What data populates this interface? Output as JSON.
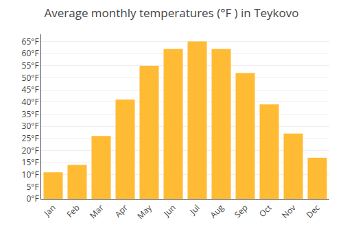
{
  "chart_data": {
    "type": "bar",
    "title": "Average monthly temperatures (°F ) in Teykovo",
    "categories": [
      "Jan",
      "Feb",
      "Mar",
      "Apr",
      "May",
      "Jun",
      "Jul",
      "Aug",
      "Sep",
      "Oct",
      "Nov",
      "Dec"
    ],
    "values": [
      11,
      14,
      26,
      41,
      55,
      62,
      65,
      62,
      52,
      39,
      27,
      17
    ],
    "color": "#FFBB33",
    "ylim": [
      0,
      68
    ],
    "yticks": [
      {
        "value": 0,
        "label": "0°F"
      },
      {
        "value": 5,
        "label": "5°F"
      },
      {
        "value": 10,
        "label": "10°F"
      },
      {
        "value": 15,
        "label": "15°F"
      },
      {
        "value": 20,
        "label": "20°F"
      },
      {
        "value": 25,
        "label": "25°F"
      },
      {
        "value": 30,
        "label": "30°F"
      },
      {
        "value": 35,
        "label": "35°F"
      },
      {
        "value": 40,
        "label": "40°F"
      },
      {
        "value": 45,
        "label": "45°F"
      },
      {
        "value": 50,
        "label": "50°F"
      },
      {
        "value": 55,
        "label": "55°F"
      },
      {
        "value": 60,
        "label": "60°F"
      },
      {
        "value": 65,
        "label": "65°F"
      }
    ],
    "grid": true
  }
}
